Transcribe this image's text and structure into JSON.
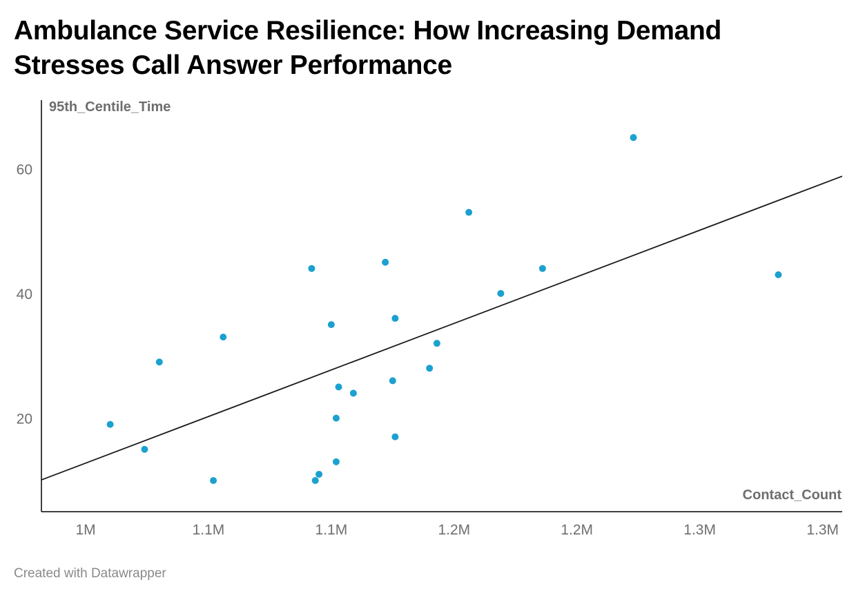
{
  "title": "Ambulance Service Resilience: How Increasing Demand Stresses Call Answer Performance",
  "footer": "Created with Datawrapper",
  "colors": {
    "points": "#1ba1d0",
    "trendline": "#1a1a1a",
    "axis": "#000000",
    "text_muted": "#6e6e6e"
  },
  "chart_data": {
    "type": "scatter",
    "xlabel": "Contact_Count",
    "ylabel": "95th_Centile_Time",
    "xlim": [
      1032000,
      1358000
    ],
    "ylim": [
      5,
      71
    ],
    "x_ticks": [
      {
        "value": 1050000,
        "label": "1M"
      },
      {
        "value": 1100000,
        "label": "1.1M"
      },
      {
        "value": 1150000,
        "label": "1.1M"
      },
      {
        "value": 1200000,
        "label": "1.2M"
      },
      {
        "value": 1250000,
        "label": "1.2M"
      },
      {
        "value": 1300000,
        "label": "1.3M"
      },
      {
        "value": 1350000,
        "label": "1.3M"
      }
    ],
    "y_ticks": [
      {
        "value": 20,
        "label": "20"
      },
      {
        "value": 40,
        "label": "40"
      },
      {
        "value": 60,
        "label": "60"
      }
    ],
    "grid": false,
    "series": [
      {
        "points": [
          {
            "x": 1060000,
            "y": 19
          },
          {
            "x": 1074000,
            "y": 15
          },
          {
            "x": 1080000,
            "y": 29
          },
          {
            "x": 1102000,
            "y": 10
          },
          {
            "x": 1106000,
            "y": 33
          },
          {
            "x": 1142000,
            "y": 44
          },
          {
            "x": 1143500,
            "y": 10
          },
          {
            "x": 1145000,
            "y": 11
          },
          {
            "x": 1150000,
            "y": 35
          },
          {
            "x": 1152000,
            "y": 13
          },
          {
            "x": 1152000,
            "y": 20
          },
          {
            "x": 1153000,
            "y": 25
          },
          {
            "x": 1159000,
            "y": 24
          },
          {
            "x": 1172000,
            "y": 45
          },
          {
            "x": 1175000,
            "y": 26
          },
          {
            "x": 1176000,
            "y": 17
          },
          {
            "x": 1176000,
            "y": 36
          },
          {
            "x": 1190000,
            "y": 28
          },
          {
            "x": 1193000,
            "y": 32
          },
          {
            "x": 1206000,
            "y": 53
          },
          {
            "x": 1219000,
            "y": 40
          },
          {
            "x": 1236000,
            "y": 44
          },
          {
            "x": 1273000,
            "y": 65
          },
          {
            "x": 1332000,
            "y": 43
          }
        ]
      }
    ],
    "trendline": {
      "points": [
        {
          "x": 1032000,
          "y": 10.1
        },
        {
          "x": 1358000,
          "y": 58.8
        }
      ]
    }
  }
}
